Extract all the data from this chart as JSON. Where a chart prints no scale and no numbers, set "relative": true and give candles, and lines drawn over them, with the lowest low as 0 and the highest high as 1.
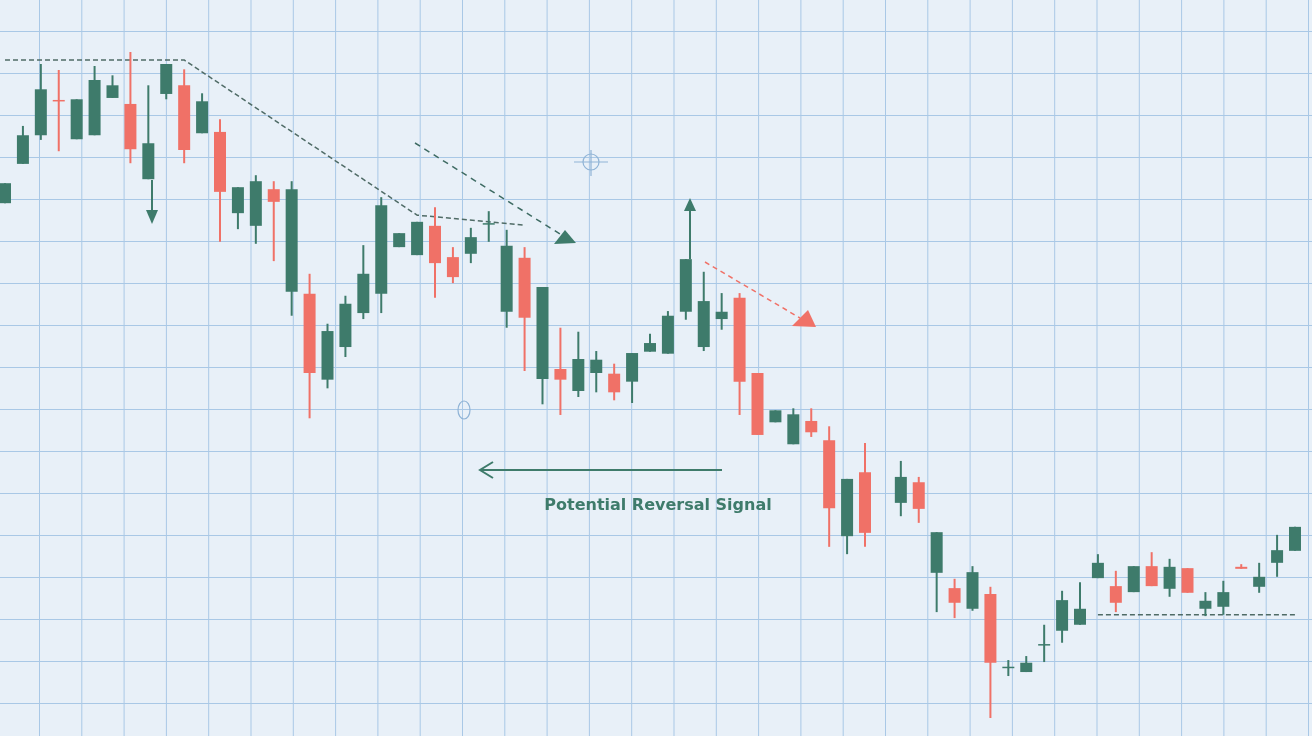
{
  "chart_data": {
    "type": "candlestick",
    "relative": true,
    "grid": true,
    "marker": "none",
    "categories": [
      null,
      null,
      null,
      null,
      null,
      null,
      null,
      null,
      null,
      null,
      null,
      null,
      null,
      null,
      null,
      null,
      null,
      null,
      null,
      null,
      null,
      null,
      null,
      null,
      null,
      null,
      null,
      null,
      null,
      null,
      null,
      null,
      null,
      null,
      null,
      null,
      null,
      null,
      null,
      null,
      null,
      null,
      null,
      null,
      null,
      null,
      null,
      null,
      null,
      null,
      null,
      null,
      null,
      null,
      null,
      null,
      null,
      null,
      null,
      null,
      null,
      null,
      null,
      null,
      null,
      null,
      null,
      null,
      null,
      null,
      null,
      null,
      null
    ],
    "ohlc": [
      [
        0.773,
        0.803,
        0.773,
        0.803
      ],
      [
        0.832,
        0.889,
        0.832,
        0.875
      ],
      [
        0.875,
        0.982,
        0.868,
        0.944
      ],
      [
        0.928,
        0.973,
        0.851,
        0.926
      ],
      [
        0.869,
        0.929,
        0.869,
        0.929
      ],
      [
        0.875,
        0.979,
        0.875,
        0.958
      ],
      [
        0.931,
        0.965,
        0.931,
        0.95
      ],
      [
        0.922,
        1,
        0.833,
        0.854
      ],
      [
        0.809,
        0.95,
        0.809,
        0.863
      ],
      [
        0.937,
        0.982,
        0.929,
        0.982
      ],
      [
        0.95,
        0.974,
        0.833,
        0.853
      ],
      [
        0.878,
        0.938,
        0.878,
        0.926
      ],
      [
        0.88,
        0.899,
        0.715,
        0.79
      ],
      [
        0.758,
        0.797,
        0.734,
        0.797
      ],
      [
        0.739,
        0.815,
        0.712,
        0.806
      ],
      [
        0.794,
        0.806,
        0.686,
        0.775
      ],
      [
        0.64,
        0.806,
        0.604,
        0.794
      ],
      [
        0.637,
        0.667,
        0.45,
        0.518
      ],
      [
        0.508,
        0.592,
        0.495,
        0.581
      ],
      [
        0.557,
        0.634,
        0.542,
        0.622
      ],
      [
        0.608,
        0.71,
        0.599,
        0.667
      ],
      [
        0.637,
        0.782,
        0.608,
        0.77
      ],
      [
        0.707,
        0.728,
        0.707,
        0.728
      ],
      [
        0.695,
        0.745,
        0.695,
        0.745
      ],
      [
        0.739,
        0.767,
        0.631,
        0.683
      ],
      [
        0.692,
        0.707,
        0.653,
        0.662
      ],
      [
        0.697,
        0.736,
        0.683,
        0.722
      ],
      [
        0.742,
        0.761,
        0.715,
        0.743
      ],
      [
        0.61,
        0.733,
        0.586,
        0.709
      ],
      [
        0.691,
        0.707,
        0.521,
        0.601
      ],
      [
        0.509,
        0.647,
        0.471,
        0.647
      ],
      [
        0.524,
        0.586,
        0.455,
        0.508
      ],
      [
        0.491,
        0.58,
        0.482,
        0.539
      ],
      [
        0.518,
        0.551,
        0.489,
        0.538
      ],
      [
        0.517,
        0.532,
        0.477,
        0.489
      ],
      [
        0.505,
        0.548,
        0.473,
        0.548
      ],
      [
        0.55,
        0.577,
        0.55,
        0.563
      ],
      [
        0.547,
        0.611,
        0.547,
        0.604
      ],
      [
        0.61,
        0.689,
        0.598,
        0.689
      ],
      [
        0.557,
        0.67,
        0.551,
        0.626
      ],
      [
        0.599,
        0.638,
        0.583,
        0.61
      ],
      [
        0.631,
        0.638,
        0.455,
        0.505
      ],
      [
        0.518,
        0.518,
        0.425,
        0.425
      ],
      [
        0.444,
        0.462,
        0.444,
        0.462
      ],
      [
        0.411,
        0.465,
        0.411,
        0.456
      ],
      [
        0.446,
        0.465,
        0.422,
        0.429
      ],
      [
        0.417,
        0.438,
        0.257,
        0.315
      ],
      [
        0.273,
        0.359,
        0.246,
        0.359
      ],
      [
        0.369,
        0.413,
        0.257,
        0.278
      ],
      null,
      [
        0.323,
        0.386,
        0.303,
        0.362
      ],
      [
        0.354,
        0.362,
        0.293,
        0.314
      ],
      [
        0.218,
        0.279,
        0.159,
        0.279
      ],
      [
        0.195,
        0.209,
        0.15,
        0.173
      ],
      [
        0.164,
        0.228,
        0.161,
        0.219
      ],
      [
        0.186,
        0.197,
        0,
        0.083
      ],
      [
        0.075,
        0.087,
        0.063,
        0.077
      ],
      [
        0.069,
        0.093,
        0.069,
        0.083
      ],
      [
        0.11,
        0.14,
        0.084,
        0.111
      ],
      [
        0.131,
        0.191,
        0.113,
        0.177
      ],
      [
        0.14,
        0.204,
        0.14,
        0.164
      ],
      [
        0.21,
        0.246,
        0.21,
        0.233
      ],
      [
        0.198,
        0.221,
        0.159,
        0.173
      ],
      [
        0.189,
        0.228,
        0.189,
        0.228
      ],
      [
        0.228,
        0.249,
        0.198,
        0.198
      ],
      [
        0.194,
        0.239,
        0.182,
        0.227
      ],
      [
        0.225,
        0.225,
        0.188,
        0.188
      ],
      [
        0.164,
        0.189,
        0.153,
        0.176
      ],
      [
        0.167,
        0.206,
        0.155,
        0.189
      ],
      [
        0.227,
        0.231,
        0.224,
        0.224
      ],
      [
        0.197,
        0.233,
        0.188,
        0.212
      ],
      [
        0.233,
        0.275,
        0.212,
        0.252
      ],
      [
        0.251,
        0.287,
        0.251,
        0.287
      ]
    ],
    "colors": [
      "#3e7b6b",
      "#3e7b6b",
      "#3e7b6b",
      "#f07167",
      "#3e7b6b",
      "#3e7b6b",
      "#3e7b6b",
      "#f07167",
      "#3e7b6b",
      "#3e7b6b",
      "#f07167",
      "#3e7b6b",
      "#f07167",
      "#3e7b6b",
      "#3e7b6b",
      "#f07167",
      "#3e7b6b",
      "#f07167",
      "#3e7b6b",
      "#3e7b6b",
      "#3e7b6b",
      "#3e7b6b",
      "#3e7b6b",
      "#3e7b6b",
      "#f07167",
      "#f07167",
      "#3e7b6b",
      "#3e7b6b",
      "#3e7b6b",
      "#f07167",
      "#3e7b6b",
      "#f07167",
      "#3e7b6b",
      "#3e7b6b",
      "#f07167",
      "#3e7b6b",
      "#3e7b6b",
      "#3e7b6b",
      "#3e7b6b",
      "#3e7b6b",
      "#3e7b6b",
      "#f07167",
      "#f07167",
      "#3e7b6b",
      "#3e7b6b",
      "#f07167",
      "#f07167",
      "#3e7b6b",
      "#f07167",
      null,
      "#3e7b6b",
      "#f07167",
      "#3e7b6b",
      "#f07167",
      "#3e7b6b",
      "#f07167",
      "#3e7b6b",
      "#3e7b6b",
      "#3e7b6b",
      "#3e7b6b",
      "#3e7b6b",
      "#3e7b6b",
      "#f07167",
      "#3e7b6b",
      "#f07167",
      "#3e7b6b",
      "#f07167",
      "#3e7b6b",
      "#3e7b6b",
      "#f07167",
      "#3e7b6b",
      "#3e7b6b",
      "#3e7b6b"
    ],
    "series": [
      {
        "type": "line",
        "color": "#4f6b66",
        "line_style": "dashed",
        "values": [
          0.988,
          null,
          null,
          null,
          null,
          null,
          null,
          null,
          null,
          null,
          0.988,
          null,
          null,
          null,
          null,
          null,
          null,
          null,
          null,
          null,
          null,
          null,
          null,
          0.755,
          null,
          null,
          null,
          null,
          null,
          0.74,
          null,
          null,
          null,
          null,
          null,
          null,
          null,
          null,
          null,
          null,
          null,
          null,
          null,
          null,
          null,
          null,
          null,
          null,
          null,
          null,
          null,
          null,
          null,
          null,
          null,
          null,
          null,
          null,
          null,
          null,
          null,
          null,
          null,
          null,
          null,
          null,
          null,
          null,
          null,
          null,
          null,
          null,
          null
        ]
      },
      {
        "type": "line",
        "color": "#4f6b66",
        "line_style": "dashed",
        "values": [
          null,
          null,
          null,
          null,
          null,
          null,
          null,
          null,
          null,
          null,
          null,
          null,
          null,
          null,
          null,
          null,
          null,
          null,
          null,
          null,
          null,
          null,
          null,
          null,
          null,
          null,
          null,
          null,
          null,
          null,
          null,
          null,
          null,
          null,
          null,
          null,
          null,
          null,
          null,
          null,
          null,
          null,
          null,
          null,
          null,
          null,
          null,
          null,
          null,
          null,
          null,
          null,
          null,
          null,
          null,
          null,
          null,
          null,
          null,
          null,
          null,
          0.155,
          0.155,
          0.155,
          0.155,
          0.155,
          0.155,
          0.155,
          0.155,
          0.155,
          0.155,
          0.155,
          0.155
        ]
      }
    ],
    "annotations": [
      "Potential Reversal Signal"
    ]
  }
}
